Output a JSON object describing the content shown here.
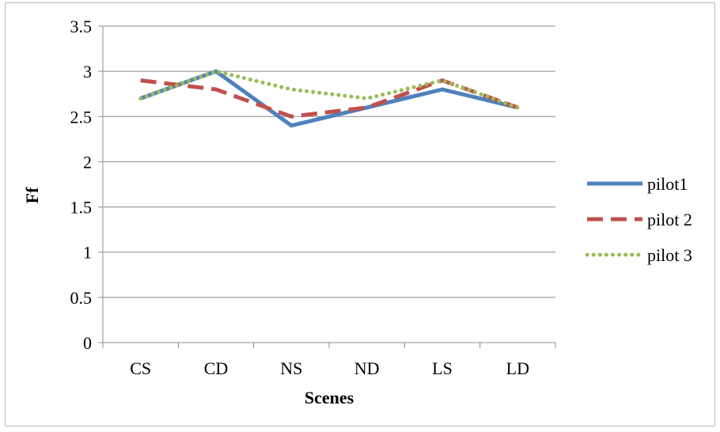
{
  "chart_data": {
    "type": "line",
    "title": "",
    "xlabel": "Scenes",
    "ylabel": "Ff",
    "categories": [
      "CS",
      "CD",
      "NS",
      "ND",
      "LS",
      "LD"
    ],
    "y_ticks": [
      "0",
      "0.5",
      "1",
      "1.5",
      "2",
      "2.5",
      "3",
      "3.5"
    ],
    "ylim": [
      0,
      3.5
    ],
    "grid": "horizontal",
    "legend_position": "right",
    "series": [
      {
        "name": "pilot1",
        "values": [
          2.7,
          3.0,
          2.4,
          2.6,
          2.8,
          2.6
        ],
        "color": "#4f81bd",
        "style": "solid"
      },
      {
        "name": "pilot 2",
        "values": [
          2.9,
          2.8,
          2.5,
          2.6,
          2.9,
          2.6
        ],
        "color": "#c0504d",
        "style": "dashed"
      },
      {
        "name": "pilot 3",
        "values": [
          2.7,
          3.0,
          2.8,
          2.7,
          2.9,
          2.6
        ],
        "color": "#9bbb59",
        "style": "dotted"
      }
    ]
  }
}
